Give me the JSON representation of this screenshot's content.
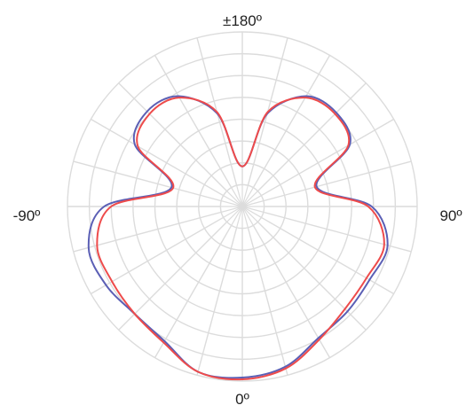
{
  "chart_data": {
    "type": "polar-line",
    "angle_labels": {
      "top": "±180º",
      "left": "-90º",
      "right": "90º",
      "bottom": "0º"
    },
    "angular_axis": {
      "zero_direction": "bottom",
      "range_deg": [
        -180,
        180
      ],
      "grid_step_deg": 15
    },
    "radial_axis": {
      "rings": 8,
      "tick_labels_shown": false
    },
    "grid": true,
    "grid_color": "#dcdcdc",
    "series": [
      {
        "color": "#5b5fb5",
        "angles": [
          0,
          15,
          30,
          45,
          60,
          75,
          90,
          105,
          120,
          135,
          150,
          165,
          180,
          -165,
          -150,
          -135,
          -120,
          -105,
          -90,
          -75,
          -60,
          -45,
          -30,
          -15
        ],
        "radius": [
          0.98,
          0.95,
          0.87,
          0.85,
          0.84,
          0.86,
          0.74,
          0.44,
          0.71,
          0.76,
          0.73,
          0.55,
          0.23,
          0.55,
          0.73,
          0.77,
          0.71,
          0.42,
          0.79,
          0.91,
          0.9,
          0.87,
          0.89,
          0.98
        ]
      },
      {
        "color": "#ee4b4b",
        "angles": [
          0,
          15,
          30,
          45,
          60,
          75,
          90,
          105,
          120,
          135,
          150,
          165,
          180,
          -165,
          -150,
          -135,
          -120,
          -105,
          -90,
          -75,
          -60,
          -45,
          -30,
          -15
        ],
        "radius": [
          0.99,
          0.96,
          0.88,
          0.83,
          0.82,
          0.84,
          0.72,
          0.43,
          0.7,
          0.75,
          0.72,
          0.56,
          0.23,
          0.56,
          0.72,
          0.75,
          0.69,
          0.41,
          0.75,
          0.86,
          0.86,
          0.87,
          0.9,
          0.98
        ]
      }
    ]
  }
}
